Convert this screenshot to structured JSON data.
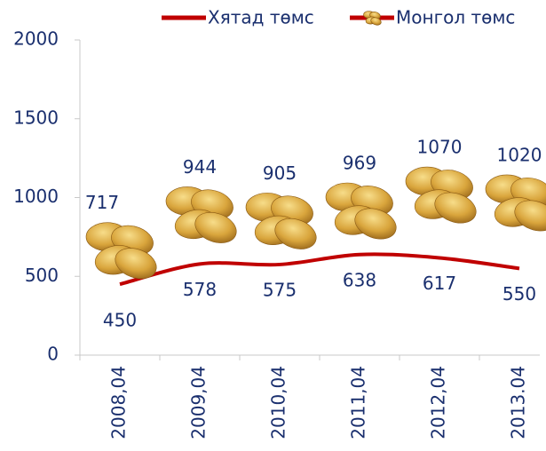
{
  "chart_data": {
    "type": "line",
    "categories": [
      "2008,04",
      "2009,04",
      "2010,04",
      "2011,04",
      "2012,04",
      "2013.04"
    ],
    "series": [
      {
        "name": "Хятад төмс",
        "color": "#c00000",
        "values": [
          450,
          578,
          575,
          638,
          617,
          550
        ]
      },
      {
        "name": "Монгол төмс",
        "color": "#c00000",
        "values": [
          717,
          944,
          905,
          969,
          1070,
          1020
        ]
      }
    ],
    "ylim": [
      0,
      2000
    ],
    "yticks": [
      0,
      500,
      1000,
      1500,
      2000
    ],
    "grid": false,
    "legend": "top"
  }
}
